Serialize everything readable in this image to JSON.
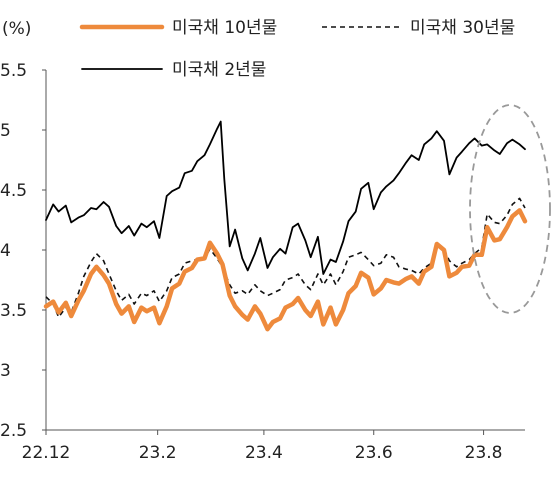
{
  "chart_data": {
    "type": "line",
    "yunit": "(%)",
    "ylim": [
      2.5,
      5.5
    ],
    "yticks": [
      "5.5",
      "5",
      "4.5",
      "4",
      "3.5",
      "3",
      "2.5"
    ],
    "x_start": "2022-12-01",
    "x_end": "2023-08-24",
    "xticks": [
      {
        "date": "2022-12-01",
        "label": "22.12"
      },
      {
        "date": "2023-02-01",
        "label": "23.2"
      },
      {
        "date": "2023-04-01",
        "label": "23.4"
      },
      {
        "date": "2023-06-01",
        "label": "23.6"
      },
      {
        "date": "2023-08-01",
        "label": "23.8"
      }
    ],
    "grid": false,
    "legend_position": "top",
    "annotation": "dashed ellipse around the most recent period (late Jul - Aug 2023)",
    "series": [
      {
        "name": "미국채 10년물",
        "color": "#ee8a3c",
        "style": "thick",
        "points": [
          [
            "2022-12-01",
            3.53
          ],
          [
            "2022-12-05",
            3.57
          ],
          [
            "2022-12-08",
            3.48
          ],
          [
            "2022-12-12",
            3.56
          ],
          [
            "2022-12-15",
            3.45
          ],
          [
            "2022-12-19",
            3.58
          ],
          [
            "2022-12-22",
            3.66
          ],
          [
            "2022-12-26",
            3.8
          ],
          [
            "2022-12-29",
            3.86
          ],
          [
            "2023-01-02",
            3.79
          ],
          [
            "2023-01-05",
            3.72
          ],
          [
            "2023-01-09",
            3.55
          ],
          [
            "2023-01-12",
            3.47
          ],
          [
            "2023-01-16",
            3.53
          ],
          [
            "2023-01-19",
            3.4
          ],
          [
            "2023-01-23",
            3.52
          ],
          [
            "2023-01-26",
            3.49
          ],
          [
            "2023-01-30",
            3.52
          ],
          [
            "2023-02-02",
            3.39
          ],
          [
            "2023-02-06",
            3.53
          ],
          [
            "2023-02-09",
            3.68
          ],
          [
            "2023-02-13",
            3.72
          ],
          [
            "2023-02-16",
            3.82
          ],
          [
            "2023-02-20",
            3.85
          ],
          [
            "2023-02-23",
            3.92
          ],
          [
            "2023-02-27",
            3.93
          ],
          [
            "2023-03-02",
            4.06
          ],
          [
            "2023-03-06",
            3.97
          ],
          [
            "2023-03-09",
            3.88
          ],
          [
            "2023-03-13",
            3.62
          ],
          [
            "2023-03-16",
            3.53
          ],
          [
            "2023-03-20",
            3.46
          ],
          [
            "2023-03-23",
            3.42
          ],
          [
            "2023-03-27",
            3.53
          ],
          [
            "2023-03-30",
            3.47
          ],
          [
            "2023-04-03",
            3.34
          ],
          [
            "2023-04-06",
            3.4
          ],
          [
            "2023-04-10",
            3.43
          ],
          [
            "2023-04-13",
            3.52
          ],
          [
            "2023-04-17",
            3.55
          ],
          [
            "2023-04-20",
            3.6
          ],
          [
            "2023-04-24",
            3.5
          ],
          [
            "2023-04-27",
            3.45
          ],
          [
            "2023-05-01",
            3.57
          ],
          [
            "2023-05-04",
            3.38
          ],
          [
            "2023-05-08",
            3.52
          ],
          [
            "2023-05-11",
            3.38
          ],
          [
            "2023-05-15",
            3.5
          ],
          [
            "2023-05-18",
            3.64
          ],
          [
            "2023-05-22",
            3.7
          ],
          [
            "2023-05-25",
            3.81
          ],
          [
            "2023-05-29",
            3.77
          ],
          [
            "2023-06-01",
            3.63
          ],
          [
            "2023-06-05",
            3.68
          ],
          [
            "2023-06-08",
            3.75
          ],
          [
            "2023-06-12",
            3.73
          ],
          [
            "2023-06-15",
            3.72
          ],
          [
            "2023-06-19",
            3.76
          ],
          [
            "2023-06-22",
            3.78
          ],
          [
            "2023-06-26",
            3.72
          ],
          [
            "2023-06-29",
            3.82
          ],
          [
            "2023-07-03",
            3.86
          ],
          [
            "2023-07-06",
            4.05
          ],
          [
            "2023-07-10",
            4.0
          ],
          [
            "2023-07-13",
            3.78
          ],
          [
            "2023-07-17",
            3.81
          ],
          [
            "2023-07-20",
            3.86
          ],
          [
            "2023-07-24",
            3.87
          ],
          [
            "2023-07-27",
            3.96
          ],
          [
            "2023-07-31",
            3.96
          ],
          [
            "2023-08-03",
            4.19
          ],
          [
            "2023-08-07",
            4.08
          ],
          [
            "2023-08-10",
            4.09
          ],
          [
            "2023-08-14",
            4.19
          ],
          [
            "2023-08-17",
            4.28
          ],
          [
            "2023-08-21",
            4.33
          ],
          [
            "2023-08-24",
            4.24
          ]
        ]
      },
      {
        "name": "미국채 30년물",
        "color": "#111111",
        "style": "dashed",
        "points": [
          [
            "2022-12-01",
            3.61
          ],
          [
            "2022-12-05",
            3.55
          ],
          [
            "2022-12-08",
            3.44
          ],
          [
            "2022-12-12",
            3.52
          ],
          [
            "2022-12-15",
            3.48
          ],
          [
            "2022-12-19",
            3.64
          ],
          [
            "2022-12-22",
            3.78
          ],
          [
            "2022-12-26",
            3.9
          ],
          [
            "2022-12-29",
            3.97
          ],
          [
            "2023-01-02",
            3.91
          ],
          [
            "2023-01-05",
            3.8
          ],
          [
            "2023-01-09",
            3.66
          ],
          [
            "2023-01-12",
            3.58
          ],
          [
            "2023-01-16",
            3.63
          ],
          [
            "2023-01-19",
            3.55
          ],
          [
            "2023-01-23",
            3.64
          ],
          [
            "2023-01-26",
            3.62
          ],
          [
            "2023-01-30",
            3.66
          ],
          [
            "2023-02-02",
            3.57
          ],
          [
            "2023-02-06",
            3.66
          ],
          [
            "2023-02-09",
            3.77
          ],
          [
            "2023-02-13",
            3.8
          ],
          [
            "2023-02-16",
            3.89
          ],
          [
            "2023-02-20",
            3.91
          ],
          [
            "2023-02-23",
            3.92
          ],
          [
            "2023-02-27",
            3.92
          ],
          [
            "2023-03-02",
            4.01
          ],
          [
            "2023-03-06",
            3.93
          ],
          [
            "2023-03-09",
            3.86
          ],
          [
            "2023-03-13",
            3.71
          ],
          [
            "2023-03-16",
            3.64
          ],
          [
            "2023-03-20",
            3.66
          ],
          [
            "2023-03-23",
            3.63
          ],
          [
            "2023-03-27",
            3.71
          ],
          [
            "2023-03-30",
            3.66
          ],
          [
            "2023-04-03",
            3.62
          ],
          [
            "2023-04-06",
            3.64
          ],
          [
            "2023-04-10",
            3.67
          ],
          [
            "2023-04-13",
            3.75
          ],
          [
            "2023-04-17",
            3.77
          ],
          [
            "2023-04-20",
            3.8
          ],
          [
            "2023-04-24",
            3.71
          ],
          [
            "2023-04-27",
            3.67
          ],
          [
            "2023-05-01",
            3.8
          ],
          [
            "2023-05-04",
            3.71
          ],
          [
            "2023-05-08",
            3.8
          ],
          [
            "2023-05-11",
            3.71
          ],
          [
            "2023-05-15",
            3.82
          ],
          [
            "2023-05-18",
            3.94
          ],
          [
            "2023-05-22",
            3.96
          ],
          [
            "2023-05-25",
            3.98
          ],
          [
            "2023-05-29",
            3.92
          ],
          [
            "2023-06-01",
            3.87
          ],
          [
            "2023-06-05",
            3.89
          ],
          [
            "2023-06-08",
            3.96
          ],
          [
            "2023-06-12",
            3.94
          ],
          [
            "2023-06-15",
            3.86
          ],
          [
            "2023-06-19",
            3.84
          ],
          [
            "2023-06-22",
            3.83
          ],
          [
            "2023-06-26",
            3.8
          ],
          [
            "2023-06-29",
            3.85
          ],
          [
            "2023-07-03",
            3.89
          ],
          [
            "2023-07-06",
            4.05
          ],
          [
            "2023-07-10",
            4.01
          ],
          [
            "2023-07-13",
            3.91
          ],
          [
            "2023-07-17",
            3.86
          ],
          [
            "2023-07-20",
            3.89
          ],
          [
            "2023-07-24",
            3.92
          ],
          [
            "2023-07-27",
            3.97
          ],
          [
            "2023-07-31",
            4.02
          ],
          [
            "2023-08-03",
            4.3
          ],
          [
            "2023-08-07",
            4.23
          ],
          [
            "2023-08-10",
            4.22
          ],
          [
            "2023-08-14",
            4.29
          ],
          [
            "2023-08-17",
            4.38
          ],
          [
            "2023-08-21",
            4.43
          ],
          [
            "2023-08-24",
            4.35
          ]
        ]
      },
      {
        "name": "미국채 2년물",
        "color": "#000000",
        "style": "solid",
        "points": [
          [
            "2022-12-01",
            4.25
          ],
          [
            "2022-12-05",
            4.38
          ],
          [
            "2022-12-08",
            4.32
          ],
          [
            "2022-12-12",
            4.37
          ],
          [
            "2022-12-15",
            4.23
          ],
          [
            "2022-12-19",
            4.27
          ],
          [
            "2022-12-22",
            4.29
          ],
          [
            "2022-12-26",
            4.35
          ],
          [
            "2022-12-29",
            4.34
          ],
          [
            "2023-01-02",
            4.4
          ],
          [
            "2023-01-05",
            4.36
          ],
          [
            "2023-01-09",
            4.2
          ],
          [
            "2023-01-12",
            4.14
          ],
          [
            "2023-01-16",
            4.2
          ],
          [
            "2023-01-19",
            4.12
          ],
          [
            "2023-01-23",
            4.22
          ],
          [
            "2023-01-26",
            4.19
          ],
          [
            "2023-01-30",
            4.24
          ],
          [
            "2023-02-02",
            4.1
          ],
          [
            "2023-02-06",
            4.45
          ],
          [
            "2023-02-09",
            4.49
          ],
          [
            "2023-02-13",
            4.52
          ],
          [
            "2023-02-16",
            4.64
          ],
          [
            "2023-02-20",
            4.66
          ],
          [
            "2023-02-23",
            4.74
          ],
          [
            "2023-02-27",
            4.79
          ],
          [
            "2023-03-02",
            4.88
          ],
          [
            "2023-03-06",
            5.01
          ],
          [
            "2023-03-08",
            5.07
          ],
          [
            "2023-03-10",
            4.59
          ],
          [
            "2023-03-13",
            4.03
          ],
          [
            "2023-03-16",
            4.17
          ],
          [
            "2023-03-20",
            3.93
          ],
          [
            "2023-03-23",
            3.83
          ],
          [
            "2023-03-27",
            3.97
          ],
          [
            "2023-03-30",
            4.1
          ],
          [
            "2023-04-03",
            3.85
          ],
          [
            "2023-04-06",
            3.94
          ],
          [
            "2023-04-10",
            4.01
          ],
          [
            "2023-04-13",
            3.97
          ],
          [
            "2023-04-17",
            4.19
          ],
          [
            "2023-04-20",
            4.22
          ],
          [
            "2023-04-24",
            4.08
          ],
          [
            "2023-04-27",
            3.94
          ],
          [
            "2023-05-01",
            4.11
          ],
          [
            "2023-05-04",
            3.8
          ],
          [
            "2023-05-08",
            3.92
          ],
          [
            "2023-05-11",
            3.9
          ],
          [
            "2023-05-15",
            4.07
          ],
          [
            "2023-05-18",
            4.24
          ],
          [
            "2023-05-22",
            4.32
          ],
          [
            "2023-05-25",
            4.51
          ],
          [
            "2023-05-29",
            4.56
          ],
          [
            "2023-06-01",
            4.34
          ],
          [
            "2023-06-05",
            4.48
          ],
          [
            "2023-06-08",
            4.53
          ],
          [
            "2023-06-12",
            4.58
          ],
          [
            "2023-06-15",
            4.64
          ],
          [
            "2023-06-19",
            4.73
          ],
          [
            "2023-06-22",
            4.79
          ],
          [
            "2023-06-26",
            4.75
          ],
          [
            "2023-06-29",
            4.88
          ],
          [
            "2023-07-03",
            4.93
          ],
          [
            "2023-07-06",
            4.99
          ],
          [
            "2023-07-10",
            4.91
          ],
          [
            "2023-07-13",
            4.63
          ],
          [
            "2023-07-17",
            4.77
          ],
          [
            "2023-07-20",
            4.82
          ],
          [
            "2023-07-24",
            4.89
          ],
          [
            "2023-07-27",
            4.93
          ],
          [
            "2023-07-31",
            4.87
          ],
          [
            "2023-08-03",
            4.88
          ],
          [
            "2023-08-07",
            4.83
          ],
          [
            "2023-08-10",
            4.8
          ],
          [
            "2023-08-14",
            4.89
          ],
          [
            "2023-08-17",
            4.92
          ],
          [
            "2023-08-21",
            4.88
          ],
          [
            "2023-08-24",
            4.84
          ]
        ]
      }
    ]
  }
}
